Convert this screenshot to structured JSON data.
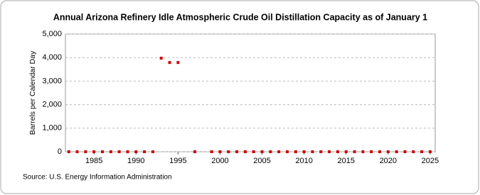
{
  "chart_data": {
    "type": "scatter",
    "title": "Annual Arizona Refinery Idle Atmospheric Crude Oil Distillation Capacity as of January 1",
    "y_label": "Barrels per Calendar Day",
    "source": "Source: U.S. Energy Information Administration",
    "x": [
      1982,
      1983,
      1984,
      1985,
      1986,
      1987,
      1988,
      1989,
      1990,
      1991,
      1992,
      1993,
      1994,
      1995,
      1996,
      1997,
      1998,
      1999,
      2000,
      2001,
      2002,
      2003,
      2004,
      2005,
      2006,
      2007,
      2008,
      2009,
      2010,
      2011,
      2012,
      2013,
      2014,
      2015,
      2016,
      2017,
      2018,
      2019,
      2020,
      2021,
      2022,
      2023,
      2024,
      2025
    ],
    "values": [
      0,
      0,
      0,
      0,
      0,
      0,
      0,
      0,
      0,
      0,
      0,
      3975,
      3790,
      3790,
      null,
      0,
      null,
      0,
      0,
      0,
      0,
      0,
      0,
      0,
      0,
      0,
      0,
      0,
      0,
      0,
      0,
      0,
      0,
      0,
      0,
      0,
      0,
      0,
      0,
      0,
      0,
      0,
      0,
      0
    ],
    "color": "#cc0000",
    "xlim": [
      1981.6,
      2025.6
    ],
    "xticks": [
      1985,
      1990,
      1995,
      2000,
      2005,
      2010,
      2015,
      2020,
      2025
    ],
    "ylim": [
      0,
      5000
    ],
    "yticks": [
      0,
      {
        "value": 1000,
        "label": "1,000"
      },
      {
        "value": 2000,
        "label": "2,000"
      },
      {
        "value": 3000,
        "label": "3,000"
      },
      {
        "value": 4000,
        "label": "4,000"
      },
      {
        "value": 5000,
        "label": "5,000"
      }
    ],
    "grid": true
  }
}
